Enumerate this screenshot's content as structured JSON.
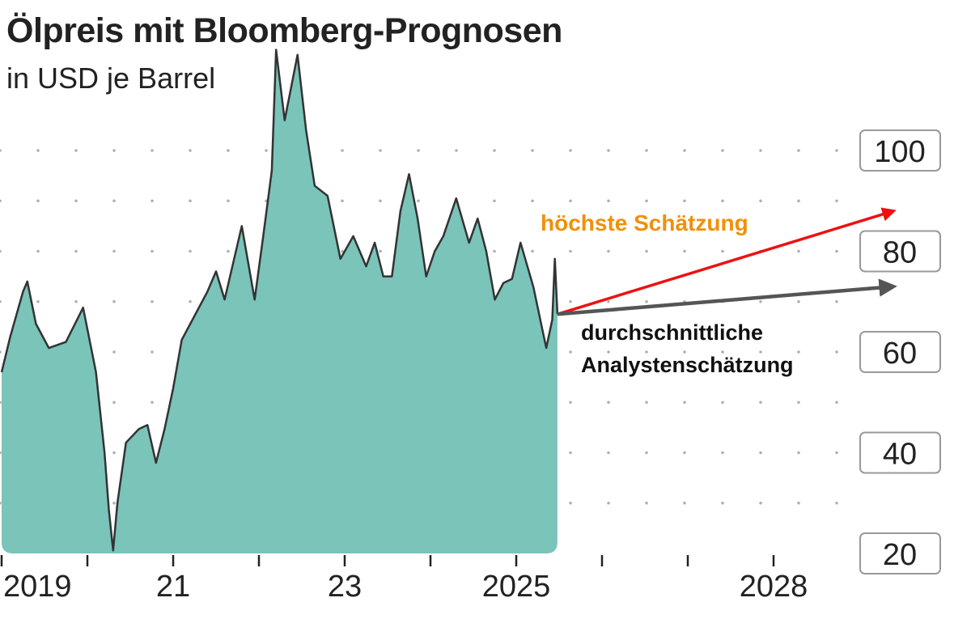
{
  "chart_data": {
    "type": "area",
    "title": "Ölpreis mit Bloomberg-Prognosen",
    "subtitle": "in USD je Barrel",
    "xlabel": "",
    "ylabel": "",
    "ylim": [
      20,
      100
    ],
    "yticks": [
      100,
      80,
      60,
      40,
      20
    ],
    "xlim": [
      2019,
      2029.4
    ],
    "xticks": [
      {
        "year": 2019,
        "label": "2019"
      },
      {
        "year": 2020,
        "label": ""
      },
      {
        "year": 2021,
        "label": "21"
      },
      {
        "year": 2022,
        "label": ""
      },
      {
        "year": 2023,
        "label": "23"
      },
      {
        "year": 2024,
        "label": ""
      },
      {
        "year": 2025,
        "label": "2025"
      },
      {
        "year": 2026,
        "label": ""
      },
      {
        "year": 2027,
        "label": ""
      },
      {
        "year": 2028,
        "label": "2028"
      }
    ],
    "grid": "dotted horizontal every 10",
    "colors": {
      "area": "#7ac4b9",
      "line": "#333333",
      "high": "#ee1111",
      "high_label": "#f0900a",
      "avg": "#555555"
    },
    "series": [
      {
        "x": [
          2019.0,
          2019.1,
          2019.25,
          2019.3,
          2019.4,
          2019.55,
          2019.75,
          2019.95,
          2020.1,
          2020.2,
          2020.25,
          2020.3,
          2020.35,
          2020.45,
          2020.6,
          2020.7,
          2020.8,
          2020.9,
          2021.0,
          2021.1,
          2021.2,
          2021.4,
          2021.5,
          2021.6,
          2021.8,
          2021.95,
          2022.05,
          2022.15,
          2022.2,
          2022.3,
          2022.45,
          2022.55,
          2022.65,
          2022.8,
          2022.95,
          2023.1,
          2023.25,
          2023.35,
          2023.45,
          2023.55,
          2023.65,
          2023.75,
          2023.85,
          2023.95,
          2024.05,
          2024.15,
          2024.3,
          2024.45,
          2024.55,
          2024.65,
          2024.75,
          2024.85,
          2024.95,
          2025.05,
          2025.2,
          2025.3,
          2025.35,
          2025.42,
          2025.45,
          2025.48
        ],
        "y": [
          56,
          63,
          72,
          74,
          65.6,
          60.8,
          62,
          68.8,
          56,
          40,
          28.7,
          20.6,
          30,
          42,
          44.7,
          45.5,
          38,
          44.7,
          52.8,
          62.4,
          65.6,
          72,
          76,
          70.4,
          85,
          70.4,
          83,
          96,
          120,
          106,
          119,
          104,
          93,
          91,
          78.5,
          83,
          77,
          81.7,
          75,
          75,
          88,
          95.3,
          86.5,
          75,
          80,
          83,
          90.5,
          81.7,
          86.5,
          80,
          70.4,
          73.7,
          74.5,
          81.7,
          72.9,
          64.8,
          60.8,
          66.4,
          78.5,
          67.5
        ]
      }
    ],
    "forecasts": [
      {
        "label": "höchste Schätzung",
        "start": [
          2025.48,
          67.5
        ],
        "end": [
          2029.4,
          88
        ]
      },
      {
        "label": "durchschnittliche Analystenschätzung",
        "label_lines": [
          "durchschnittliche",
          "Analystenschätzung"
        ],
        "start": [
          2025.48,
          67.5
        ],
        "end": [
          2029.4,
          73
        ]
      }
    ]
  }
}
